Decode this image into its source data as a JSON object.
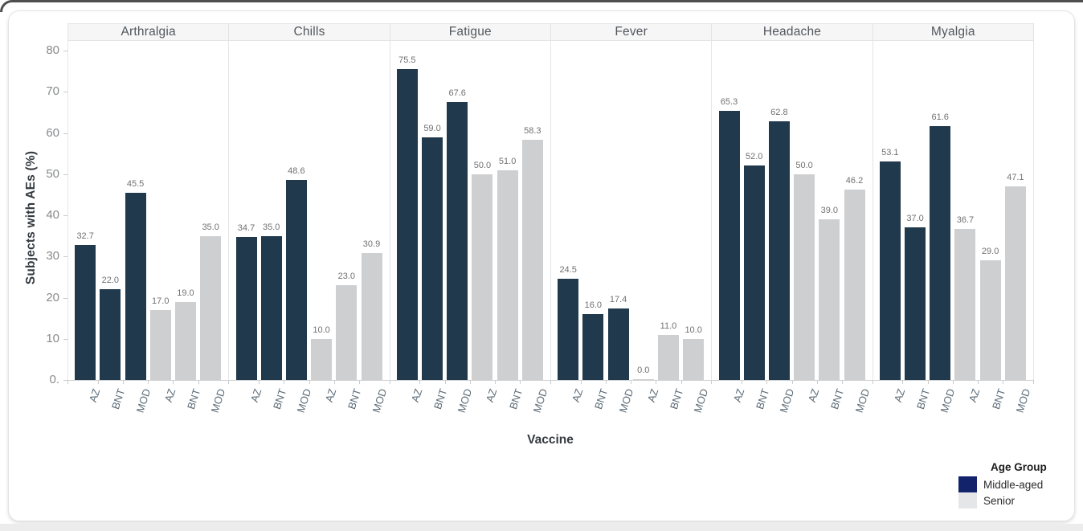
{
  "chart_data": {
    "type": "bar",
    "faceted": true,
    "facet_titles": [
      "Arthralgia",
      "Chills",
      "Fatigue",
      "Fever",
      "Headache",
      "Myalgia"
    ],
    "categories": [
      "AZ",
      "BNT",
      "MOD"
    ],
    "series": [
      {
        "name": "Middle-aged",
        "bar_color": "#20394c",
        "legend_color": "#12226b",
        "values": [
          [
            32.7,
            22.0,
            45.5
          ],
          [
            34.7,
            35.0,
            48.6
          ],
          [
            75.5,
            59.0,
            67.6
          ],
          [
            24.5,
            16.0,
            17.4
          ],
          [
            65.3,
            52.0,
            62.8
          ],
          [
            53.1,
            37.0,
            61.6
          ]
        ]
      },
      {
        "name": "Senior",
        "bar_color": "#cdcfd1",
        "legend_color": "#e5e6e8",
        "values": [
          [
            17.0,
            19.0,
            35.0
          ],
          [
            10.0,
            23.0,
            30.9
          ],
          [
            50.0,
            51.0,
            58.3
          ],
          [
            0.0,
            11.0,
            10.0
          ],
          [
            50.0,
            39.0,
            46.2
          ],
          [
            36.7,
            29.0,
            47.1
          ]
        ]
      }
    ],
    "ylabel": "Subjects with AEs (%)",
    "xlabel": "Vaccine",
    "ylim": [
      0,
      80
    ],
    "ytick_labels": [
      "80",
      "70",
      "60",
      "50",
      "40",
      "30",
      "20",
      "10",
      "0."
    ],
    "ytick_values": [
      80,
      70,
      60,
      50,
      40,
      30,
      20,
      10,
      0
    ],
    "grid": false,
    "value_labels": true,
    "value_label_format": "one-decimal",
    "legend": {
      "title": "Age Group",
      "position": "bottom-right"
    }
  }
}
